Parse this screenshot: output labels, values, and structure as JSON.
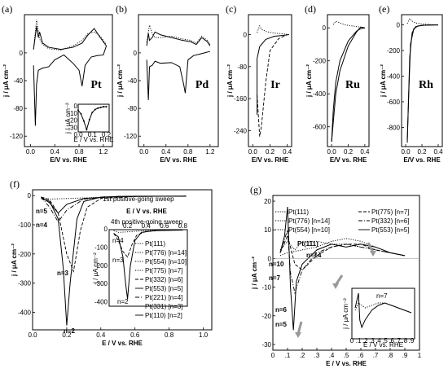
{
  "chart_data": [
    {
      "panel": "(a)",
      "type": "line",
      "metal": "Pt",
      "ylabel": "j / μA cm⁻²",
      "xlabel": "E/V vs. RHE",
      "xticks": [
        "0.0",
        "0.4",
        "0.8",
        "1.2"
      ],
      "yticks": [
        "0",
        "-40",
        "-80",
        "-120"
      ],
      "xlim": [
        -0.1,
        1.35
      ],
      "ylim": [
        -135,
        55
      ],
      "series": [
        {
          "style": "solid",
          "x": [
            0.05,
            0.08,
            0.1,
            0.13,
            0.2,
            0.3,
            0.4,
            0.55,
            0.7,
            0.8,
            0.85,
            0.9,
            1.0,
            1.1,
            1.2,
            1.25
          ],
          "y": [
            -18,
            -105,
            -45,
            -25,
            -22,
            -20,
            -10,
            -3,
            -15,
            -25,
            -48,
            -18,
            -6,
            -4,
            -3,
            10
          ]
        },
        {
          "style": "solid",
          "x": [
            0.05,
            0.1,
            0.13,
            0.15,
            0.2,
            0.3,
            0.5,
            0.7,
            0.85,
            0.95,
            1.05,
            1.15,
            1.25
          ],
          "y": [
            5,
            38,
            22,
            30,
            14,
            8,
            5,
            8,
            14,
            26,
            35,
            22,
            10
          ]
        },
        {
          "style": "dotted",
          "x": [
            0.05,
            0.1,
            0.15,
            0.2,
            0.3,
            0.5,
            0.7,
            0.85,
            0.95,
            1.05,
            1.15,
            1.25
          ],
          "y": [
            5,
            48,
            20,
            12,
            6,
            4,
            10,
            18,
            28,
            30,
            24,
            12
          ]
        }
      ],
      "inset": {
        "xlabel": "E / V vs. RHE",
        "ylabel": "j / μA cm⁻²",
        "xticks": [
          "0.0",
          "0.1",
          "0.2"
        ],
        "yticks": [
          "0",
          "-10",
          "-20",
          "-30"
        ],
        "x": [
          0.0,
          0.02,
          0.04,
          0.06,
          0.08,
          0.1,
          0.12,
          0.14,
          0.16,
          0.18,
          0.2
        ],
        "y": [
          -5,
          -10,
          -20,
          -32,
          -18,
          -8,
          -4,
          -2,
          -1,
          0,
          0
        ]
      }
    },
    {
      "panel": "(b)",
      "type": "line",
      "metal": "Pd",
      "ylabel": "j / μA cm⁻²",
      "xlabel": "E/V vs. RHE",
      "xticks": [
        "0.0",
        "0.4",
        "0.8",
        "1.2"
      ],
      "yticks": [
        "0",
        "-40",
        "-80",
        "-120"
      ],
      "xlim": [
        -0.1,
        1.35
      ],
      "ylim": [
        -135,
        55
      ],
      "series": [
        {
          "style": "solid",
          "x": [
            0.05,
            0.08,
            0.1,
            0.15,
            0.2,
            0.3,
            0.5,
            0.65,
            0.72,
            0.75,
            0.8,
            0.9,
            1.0,
            1.1,
            1.2
          ],
          "y": [
            -10,
            -68,
            -20,
            -18,
            -12,
            -15,
            -14,
            -20,
            -45,
            -58,
            -10,
            -4,
            -2,
            0,
            2
          ]
        },
        {
          "style": "solid",
          "x": [
            0.05,
            0.08,
            0.1,
            0.15,
            0.2,
            0.3,
            0.5,
            0.7,
            0.85,
            0.95,
            1.05,
            1.15,
            1.2
          ],
          "y": [
            10,
            28,
            18,
            22,
            30,
            26,
            22,
            18,
            16,
            12,
            22,
            16,
            10
          ]
        },
        {
          "style": "dotted",
          "x": [
            0.05,
            0.1,
            0.15,
            0.2,
            0.3,
            0.5,
            0.7,
            0.85,
            0.95,
            1.05,
            1.15,
            1.2
          ],
          "y": [
            15,
            40,
            28,
            22,
            22,
            24,
            20,
            18,
            14,
            24,
            18,
            12
          ]
        }
      ]
    },
    {
      "panel": "(c)",
      "type": "line",
      "metal": "Ir",
      "ylabel": "j / μA cm⁻²",
      "xlabel": "E/V vs. RHE",
      "xticks": [
        "0.0",
        "0.2",
        "0.4"
      ],
      "yticks": [
        "0",
        "-80",
        "-160",
        "-240"
      ],
      "xlim": [
        -0.05,
        0.45
      ],
      "ylim": [
        -280,
        50
      ],
      "series": [
        {
          "style": "solid",
          "x": [
            0.05,
            0.05,
            0.08,
            0.15,
            0.25,
            0.35,
            0.42
          ],
          "y": [
            -200,
            -60,
            -30,
            -12,
            -4,
            -2,
            0
          ]
        },
        {
          "style": "dashed",
          "x": [
            0.05,
            0.08,
            0.1,
            0.15,
            0.2,
            0.3,
            0.4
          ],
          "y": [
            -150,
            -255,
            -230,
            -120,
            -40,
            -10,
            0
          ]
        },
        {
          "style": "dotted",
          "x": [
            0.05,
            0.08,
            0.1,
            0.15,
            0.25,
            0.35,
            0.42
          ],
          "y": [
            5,
            22,
            14,
            8,
            4,
            2,
            0
          ]
        }
      ]
    },
    {
      "panel": "(d)",
      "type": "line",
      "metal": "Ru",
      "ylabel": "j / μA cm⁻²",
      "xlabel": "E/V vs. RHE",
      "xticks": [
        "0.0",
        "0.2",
        "0.4"
      ],
      "yticks": [
        "0",
        "-200",
        "-400",
        "-600"
      ],
      "xlim": [
        -0.05,
        0.45
      ],
      "ylim": [
        -720,
        80
      ],
      "series": [
        {
          "style": "solid",
          "x": [
            0.0,
            0.02,
            0.05,
            0.1,
            0.2,
            0.3,
            0.35,
            0.4
          ],
          "y": [
            -690,
            -500,
            -330,
            -200,
            -80,
            -20,
            -5,
            0
          ]
        },
        {
          "style": "solid",
          "x": [
            0.0,
            0.05,
            0.1,
            0.2,
            0.3,
            0.35,
            0.4
          ],
          "y": [
            -690,
            -400,
            -260,
            -110,
            -25,
            5,
            0
          ]
        },
        {
          "style": "dotted",
          "x": [
            0.02,
            0.05,
            0.1,
            0.15,
            0.2,
            0.3,
            0.4
          ],
          "y": [
            20,
            40,
            30,
            20,
            15,
            8,
            0
          ]
        }
      ]
    },
    {
      "panel": "(e)",
      "type": "line",
      "metal": "Rh",
      "ylabel": "j / μA cm⁻²",
      "xlabel": "E/V vs. RHE",
      "xticks": [
        "0.0",
        "0.2",
        "0.4"
      ],
      "yticks": [
        "0",
        "-200",
        "-400",
        "-600",
        "-800"
      ],
      "xlim": [
        -0.05,
        0.45
      ],
      "ylim": [
        -950,
        80
      ],
      "series": [
        {
          "style": "solid",
          "x": [
            0.02,
            0.03,
            0.05,
            0.08,
            0.12,
            0.2,
            0.3,
            0.4
          ],
          "y": [
            -920,
            -700,
            -250,
            -60,
            -15,
            -3,
            -1,
            0
          ]
        },
        {
          "style": "solid",
          "x": [
            0.02,
            0.04,
            0.06,
            0.1,
            0.15,
            0.25,
            0.35,
            0.4
          ],
          "y": [
            -900,
            -500,
            -150,
            -30,
            -8,
            -2,
            0,
            0
          ]
        },
        {
          "style": "dotted",
          "x": [
            0.02,
            0.05,
            0.08,
            0.12,
            0.2,
            0.3,
            0.4
          ],
          "y": [
            10,
            50,
            30,
            15,
            8,
            3,
            0
          ]
        }
      ]
    },
    {
      "panel": "(f)",
      "type": "line",
      "ylabel": "j / μA cm⁻²",
      "xlabel": "E / V vs. RHE",
      "xticks": [
        "0.0",
        "0.2",
        "0.4",
        "0.6",
        "0.8",
        "1.0"
      ],
      "yticks": [
        "0",
        "-100",
        "-200",
        "-300",
        "-400"
      ],
      "xlim": [
        0,
        1.05
      ],
      "ylim": [
        -460,
        20
      ],
      "annotation": "1st positive-going sweep",
      "labels": [
        "n=5",
        "n=4",
        "n=3",
        "n=2"
      ],
      "legend": [
        "Pt(111)",
        "Pt(776) [n=14]",
        "Pt(554) [n=10]",
        "Pt(775) [n=7]",
        "Pt(332) [n=6]",
        "Pt(553) [n=5]",
        "Pt(221) [n=4]",
        "Pt(331) [n=3]",
        "Pt(110) [n=2]"
      ],
      "series": [
        {
          "name": "Pt(110) [n=2]",
          "style": "solid",
          "x": [
            0.05,
            0.1,
            0.15,
            0.18,
            0.2,
            0.22,
            0.26,
            0.3,
            0.4,
            0.6,
            0.9
          ],
          "y": [
            -10,
            -20,
            -80,
            -250,
            -445,
            -300,
            -80,
            -20,
            -5,
            -2,
            -2
          ]
        },
        {
          "name": "Pt(331) [n=3]",
          "style": "dashed",
          "x": [
            0.05,
            0.1,
            0.15,
            0.2,
            0.24,
            0.28,
            0.32,
            0.4,
            0.6,
            0.9
          ],
          "y": [
            -5,
            -15,
            -60,
            -200,
            -260,
            -120,
            -40,
            -10,
            -3,
            -2
          ]
        },
        {
          "name": "Pt(553) [n=5]",
          "style": "solid",
          "x": [
            0.05,
            0.1,
            0.15,
            0.2,
            0.3,
            0.5,
            0.9
          ],
          "y": [
            -5,
            -25,
            -60,
            -30,
            -10,
            -3,
            -2
          ]
        },
        {
          "name": "Pt(221) [n=4]",
          "style": "dash-dot",
          "x": [
            0.05,
            0.1,
            0.15,
            0.2,
            0.3,
            0.5,
            0.9
          ],
          "y": [
            -5,
            -40,
            -90,
            -50,
            -12,
            -3,
            -2
          ]
        },
        {
          "name": "Pt(111)",
          "style": "dotted",
          "x": [
            0.05,
            0.1,
            0.2,
            0.4,
            0.6,
            0.9
          ],
          "y": [
            -5,
            -12,
            -10,
            -6,
            -3,
            -2
          ]
        }
      ],
      "inset": {
        "title": "E / V vs. RHE",
        "annotation": "4th positive-going sweep",
        "xticks": [
          "0.2",
          "0.4",
          "0.6",
          "0.8"
        ],
        "yticks": [
          "0",
          "-100",
          "-200",
          "-300",
          "-400"
        ],
        "ylabel": "j / μA cm⁻²",
        "labels": [
          "n=4",
          "n=3",
          "n=2"
        ],
        "series": [
          {
            "style": "solid",
            "x": [
              0.05,
              0.1,
              0.15,
              0.18,
              0.2,
              0.23,
              0.28,
              0.35,
              0.5,
              0.8
            ],
            "y": [
              -20,
              -40,
              -150,
              -300,
              -380,
              -200,
              -60,
              -15,
              -5,
              -2
            ]
          },
          {
            "style": "dashed",
            "x": [
              0.05,
              0.1,
              0.15,
              0.2,
              0.25,
              0.3,
              0.4,
              0.6,
              0.8
            ],
            "y": [
              -20,
              -60,
              -120,
              -150,
              -80,
              -30,
              -10,
              -3,
              -2
            ]
          },
          {
            "style": "dotted",
            "x": [
              0.05,
              0.1,
              0.2,
              0.4,
              0.6,
              0.8
            ],
            "y": [
              -5,
              -15,
              -12,
              -5,
              -3,
              -2
            ]
          }
        ]
      }
    },
    {
      "panel": "(g)",
      "type": "line",
      "ylabel": "j / μA cm⁻²",
      "xlabel": "E / V vs. RHE",
      "xticks": [
        "0",
        ".1",
        ".2",
        ".3",
        ".4",
        ".5",
        ".6",
        ".7",
        ".8",
        ".9",
        "1"
      ],
      "yticks": [
        "20",
        "10",
        "0",
        "-10",
        "-20",
        "-30"
      ],
      "xlim": [
        0,
        1.0
      ],
      "ylim": [
        -32,
        22
      ],
      "annotations": [
        "Pt(111)",
        "n=14",
        "n=10",
        "n=7",
        "n=6",
        "n=5"
      ],
      "legend": [
        "Pt(111)",
        "Pt(776) [n=14]",
        "Pt(554) [n=10]",
        "Pt(775) [n=7]",
        "Pt(332) [n=6]",
        "Pt(553) [n=5]"
      ],
      "series": [
        {
          "name": "Pt(553) [n=5]",
          "style": "solid",
          "x": [
            0.05,
            0.08,
            0.1,
            0.12,
            0.14,
            0.16,
            0.2,
            0.3,
            0.4,
            0.5,
            0.6,
            0.7,
            0.8,
            0.9
          ],
          "y": [
            2,
            8,
            18,
            -10,
            -25,
            -8,
            -2,
            3,
            5,
            4,
            5,
            4,
            2,
            1
          ]
        },
        {
          "name": "Pt(332) [n=6]",
          "style": "dash-dot",
          "x": [
            0.05,
            0.1,
            0.12,
            0.15,
            0.2,
            0.3,
            0.4,
            0.5,
            0.6,
            0.7,
            0.8,
            0.9
          ],
          "y": [
            2,
            10,
            -5,
            -12,
            -4,
            2,
            4,
            5,
            4,
            3,
            2,
            1
          ]
        },
        {
          "name": "Pt(775) [n=7]",
          "style": "dashed",
          "x": [
            0.05,
            0.1,
            0.15,
            0.2,
            0.3,
            0.4,
            0.5,
            0.6,
            0.7,
            0.8,
            0.9
          ],
          "y": [
            2,
            8,
            -2,
            -4,
            1,
            4,
            5,
            5,
            3,
            2,
            1
          ]
        },
        {
          "name": "Pt(554) [n=10]",
          "style": "dotted",
          "x": [
            0.05,
            0.1,
            0.15,
            0.2,
            0.3,
            0.4,
            0.5,
            0.6,
            0.7,
            0.8,
            0.9
          ],
          "y": [
            3,
            6,
            3,
            6,
            6,
            5,
            5,
            4,
            3,
            2,
            1
          ]
        },
        {
          "name": "Pt(111)",
          "style": "dotted",
          "x": [
            0.05,
            0.1,
            0.2,
            0.3,
            0.4,
            0.5,
            0.6,
            0.7,
            0.8,
            0.9
          ],
          "y": [
            1,
            2,
            3,
            4,
            6,
            7,
            6,
            4,
            2,
            1
          ]
        }
      ],
      "inset": {
        "xlabel": "E / V vs. RHE",
        "ylabel": "j / μA cm⁻²",
        "label": "n=7",
        "xticks": [
          "0",
          ".1",
          ".2",
          ".3",
          ".4",
          ".5",
          ".6",
          ".7",
          ".8",
          ".9"
        ],
        "series": [
          {
            "style": "solid",
            "x": [
              0.05,
              0.1,
              0.12,
              0.15,
              0.2,
              0.3,
              0.4,
              0.5,
              0.6,
              0.7,
              0.8,
              0.9
            ],
            "y": [
              2,
              8,
              -3,
              -6,
              -3,
              1,
              3,
              4,
              3,
              2,
              1,
              0
            ]
          },
          {
            "style": "dotted",
            "x": [
              0.05,
              0.1,
              0.2,
              0.3,
              0.4,
              0.5,
              0.6,
              0.7,
              0.8,
              0.9
            ],
            "y": [
              1,
              4,
              2,
              3,
              4,
              4,
              3,
              2,
              1,
              0
            ]
          }
        ]
      }
    }
  ]
}
